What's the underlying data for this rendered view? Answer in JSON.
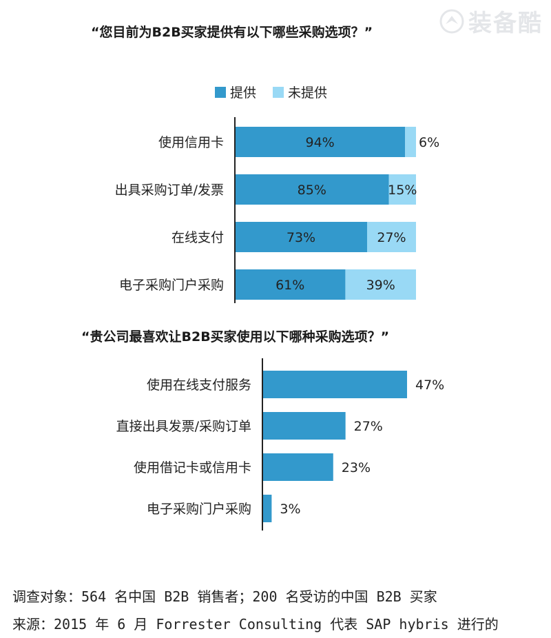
{
  "watermark": {
    "text": "装备酷",
    "icon": "bird-logo-icon"
  },
  "colors": {
    "offered": "#3399cc",
    "not_offered": "#99d9f5",
    "axis": "#222222",
    "label": "#222222"
  },
  "legend": {
    "offered": "提供",
    "not_offered": "未提供"
  },
  "chart_data": [
    {
      "type": "bar",
      "stacked": true,
      "orientation": "horizontal",
      "title": "“您目前为B2B买家提供有以下哪些采购选项？”",
      "categories": [
        "使用信用卡",
        "出具采购订单/发票",
        "在线支付",
        "电子采购门户采购"
      ],
      "series": [
        {
          "name": "提供",
          "values": [
            94,
            85,
            73,
            61
          ],
          "labels": [
            "94%",
            "85%",
            "73%",
            "61%"
          ]
        },
        {
          "name": "未提供",
          "values": [
            6,
            15,
            27,
            39
          ],
          "labels": [
            "6%",
            "15%",
            "27%",
            "39%"
          ]
        }
      ],
      "xlim": [
        0,
        100
      ],
      "legend_position": "top"
    },
    {
      "type": "bar",
      "orientation": "horizontal",
      "title": "“贵公司最喜欢让B2B买家使用以下哪种采购选项？”",
      "categories": [
        "使用在线支付服务",
        "直接出具发票/采购订单",
        "使用借记卡或信用卡",
        "电子采购门户采购"
      ],
      "values": [
        47,
        27,
        23,
        3
      ],
      "labels": [
        "47%",
        "27%",
        "23%",
        "3%"
      ],
      "xlim": [
        0,
        100
      ]
    }
  ],
  "footer": {
    "line1": "调查对象：564 名中国 B2B 销售者；200 名受访的中国 B2B 买家",
    "line2": "来源：2015 年 6 月 Forrester Consulting 代表 SAP hybris 进行的"
  }
}
